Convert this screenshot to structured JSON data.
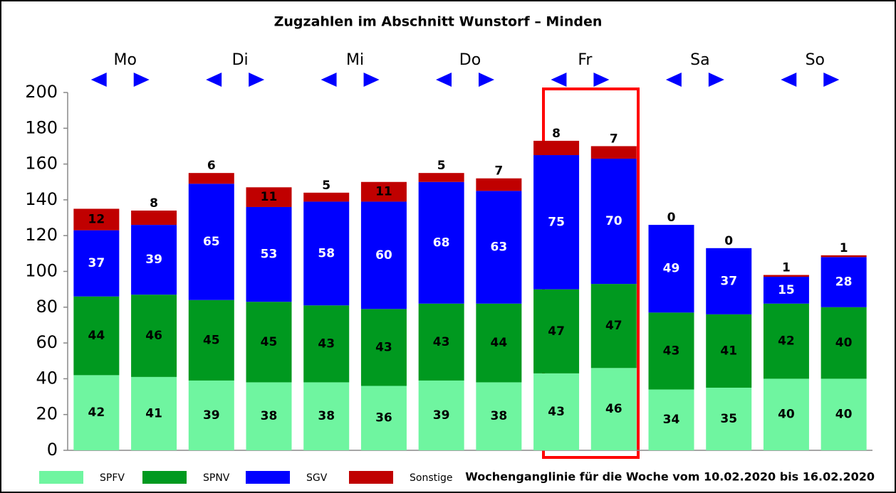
{
  "chart_data": {
    "type": "stacked_bar",
    "title": "Zugzahlen im Abschnitt Wunstorf – Minden",
    "groups": [
      "Mo",
      "Di",
      "Mi",
      "Do",
      "Fr",
      "Sa",
      "So"
    ],
    "bars_per_group": 2,
    "note": "Wochenganglinie für die Woche vom 10.02.2020 bis 16.02.2020",
    "series": [
      {
        "name": "SPFV",
        "color": "#6ff5a0",
        "values": [
          42,
          41,
          39,
          38,
          38,
          36,
          39,
          38,
          43,
          46,
          34,
          35,
          40,
          40
        ]
      },
      {
        "name": "SPNV",
        "color": "#00991f",
        "values": [
          44,
          46,
          45,
          45,
          43,
          43,
          43,
          44,
          47,
          47,
          43,
          41,
          42,
          40
        ]
      },
      {
        "name": "SGV",
        "color": "#0000ff",
        "values": [
          37,
          39,
          65,
          53,
          58,
          60,
          68,
          63,
          75,
          70,
          49,
          37,
          15,
          28
        ]
      },
      {
        "name": "Sonstige",
        "color": "#c00000",
        "values": [
          12,
          8,
          6,
          11,
          5,
          11,
          5,
          7,
          8,
          7,
          0,
          0,
          1,
          1
        ]
      }
    ],
    "ylim": [
      0,
      200
    ],
    "yticks": [
      0,
      20,
      40,
      60,
      80,
      100,
      120,
      140,
      160,
      180,
      200
    ]
  }
}
